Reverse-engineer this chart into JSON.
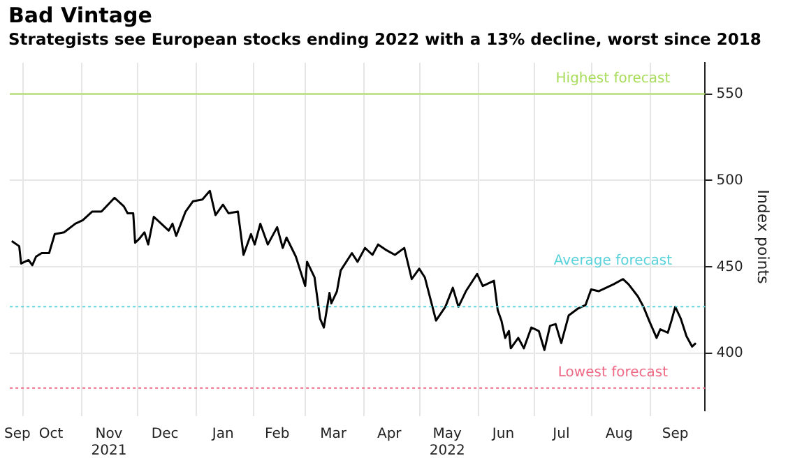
{
  "chart_data": {
    "type": "line",
    "title": "Bad Vintage",
    "subtitle": "Strategists see European stocks ending 2022 with a 13% decline, worst since 2018",
    "ylabel": "Index points",
    "x": [
      "2021-09-25",
      "2021-09-29",
      "2021-09-30",
      "2021-10-04",
      "2021-10-06",
      "2021-10-08",
      "2021-10-11",
      "2021-10-15",
      "2021-10-18",
      "2021-10-23",
      "2021-10-29",
      "2021-11-02",
      "2021-11-07",
      "2021-11-12",
      "2021-11-19",
      "2021-11-24",
      "2021-11-26",
      "2021-11-29",
      "2021-11-30",
      "2021-12-02",
      "2021-12-05",
      "2021-12-07",
      "2021-12-10",
      "2021-12-14",
      "2021-12-18",
      "2021-12-20",
      "2021-12-22",
      "2021-12-27",
      "2021-12-31",
      "2022-01-05",
      "2022-01-09",
      "2022-01-12",
      "2022-01-16",
      "2022-01-19",
      "2022-01-24",
      "2022-01-27",
      "2022-01-31",
      "2022-02-02",
      "2022-02-05",
      "2022-02-09",
      "2022-02-14",
      "2022-02-17",
      "2022-02-19",
      "2022-02-24",
      "2022-03-01",
      "2022-03-02",
      "2022-03-06",
      "2022-03-09",
      "2022-03-11",
      "2022-03-14",
      "2022-03-15",
      "2022-03-18",
      "2022-03-20",
      "2022-03-26",
      "2022-03-29",
      "2022-04-02",
      "2022-04-06",
      "2022-04-09",
      "2022-04-13",
      "2022-04-18",
      "2022-04-23",
      "2022-04-27",
      "2022-05-01",
      "2022-05-04",
      "2022-05-10",
      "2022-05-15",
      "2022-05-19",
      "2022-05-22",
      "2022-05-26",
      "2022-06-01",
      "2022-06-04",
      "2022-06-10",
      "2022-06-12",
      "2022-06-14",
      "2022-06-16",
      "2022-06-18",
      "2022-06-19",
      "2022-06-23",
      "2022-06-26",
      "2022-06-30",
      "2022-07-04",
      "2022-07-07",
      "2022-07-10",
      "2022-07-13",
      "2022-07-16",
      "2022-07-20",
      "2022-07-25",
      "2022-07-29",
      "2022-08-01",
      "2022-08-05",
      "2022-08-09",
      "2022-08-13",
      "2022-08-18",
      "2022-08-21",
      "2022-08-26",
      "2022-08-29",
      "2022-09-01",
      "2022-09-05",
      "2022-09-07",
      "2022-09-11",
      "2022-09-13",
      "2022-09-15",
      "2022-09-18",
      "2022-09-21",
      "2022-09-24",
      "2022-09-26"
    ],
    "series": [
      {
        "color": "#000000",
        "values": [
          465,
          462,
          452,
          454,
          451,
          456,
          458,
          458,
          469,
          470,
          475,
          477,
          482,
          482,
          490,
          485,
          481,
          481,
          464,
          466,
          470,
          463,
          479,
          475,
          471,
          475,
          468,
          482,
          488,
          489,
          494,
          480,
          486,
          481,
          482,
          457,
          469,
          463,
          475,
          463,
          473,
          461,
          467,
          456,
          439,
          453,
          444,
          420,
          415,
          435,
          429,
          436,
          448,
          458,
          453,
          461,
          457,
          463,
          460,
          457,
          461,
          443,
          449,
          444,
          419,
          427,
          438,
          427,
          436,
          446,
          439,
          442,
          425,
          419,
          409,
          413,
          403,
          409,
          403,
          415,
          413,
          402,
          416,
          417,
          406,
          422,
          426,
          428,
          437,
          436,
          438,
          440,
          443,
          440,
          433,
          427,
          419,
          409,
          414,
          412,
          419,
          427,
          420,
          410,
          404,
          406
        ]
      }
    ],
    "xlim": [
      "2021-09-24",
      "2022-10-01"
    ],
    "xticks": [
      {
        "value": "2021-10-01",
        "label": null
      },
      {
        "value": "2021-11-01",
        "label": null
      },
      {
        "value": "2021-12-01",
        "label": null
      },
      {
        "value": "2022-01-01",
        "label": null
      },
      {
        "value": "2022-02-01",
        "label": null
      },
      {
        "value": "2022-03-01",
        "label": null
      },
      {
        "value": "2022-04-01",
        "label": null
      },
      {
        "value": "2022-05-01",
        "label": null
      },
      {
        "value": "2022-06-01",
        "label": null
      },
      {
        "value": "2022-07-01",
        "label": null
      },
      {
        "value": "2022-08-01",
        "label": null
      },
      {
        "value": "2022-09-01",
        "label": null
      },
      {
        "value": "2021-09-28",
        "label": "Sep"
      },
      {
        "value": "2021-10-16",
        "label": "Oct"
      },
      {
        "value": "2021-11-16",
        "label": "Nov\n2021"
      },
      {
        "value": "2021-12-16",
        "label": "Dec"
      },
      {
        "value": "2022-01-16",
        "label": "Jan"
      },
      {
        "value": "2022-02-14",
        "label": "Feb"
      },
      {
        "value": "2022-03-16",
        "label": "Mar"
      },
      {
        "value": "2022-04-15",
        "label": "Apr"
      },
      {
        "value": "2022-05-16",
        "label": "May\n2022"
      },
      {
        "value": "2022-06-15",
        "label": "Jun"
      },
      {
        "value": "2022-07-16",
        "label": "Jul"
      },
      {
        "value": "2022-08-16",
        "label": "Aug"
      },
      {
        "value": "2022-09-15",
        "label": "Sep"
      }
    ],
    "ylim": [
      367,
      568
    ],
    "yticks": [
      400,
      450,
      500,
      550
    ],
    "grid": true,
    "legend": false,
    "marker": "none",
    "line_style": "solid",
    "ref_lines": [
      {
        "axis": "y",
        "value": 550,
        "label": "Highest forecast",
        "color": "#a8dc5a",
        "line_style": "solid"
      },
      {
        "axis": "y",
        "value": 427,
        "label": "Average forecast",
        "color": "#5ad2dc",
        "line_style": "dotted"
      },
      {
        "axis": "y",
        "value": 380,
        "label": "Lowest forecast",
        "color": "#ee6a86",
        "line_style": "dotted"
      }
    ]
  }
}
